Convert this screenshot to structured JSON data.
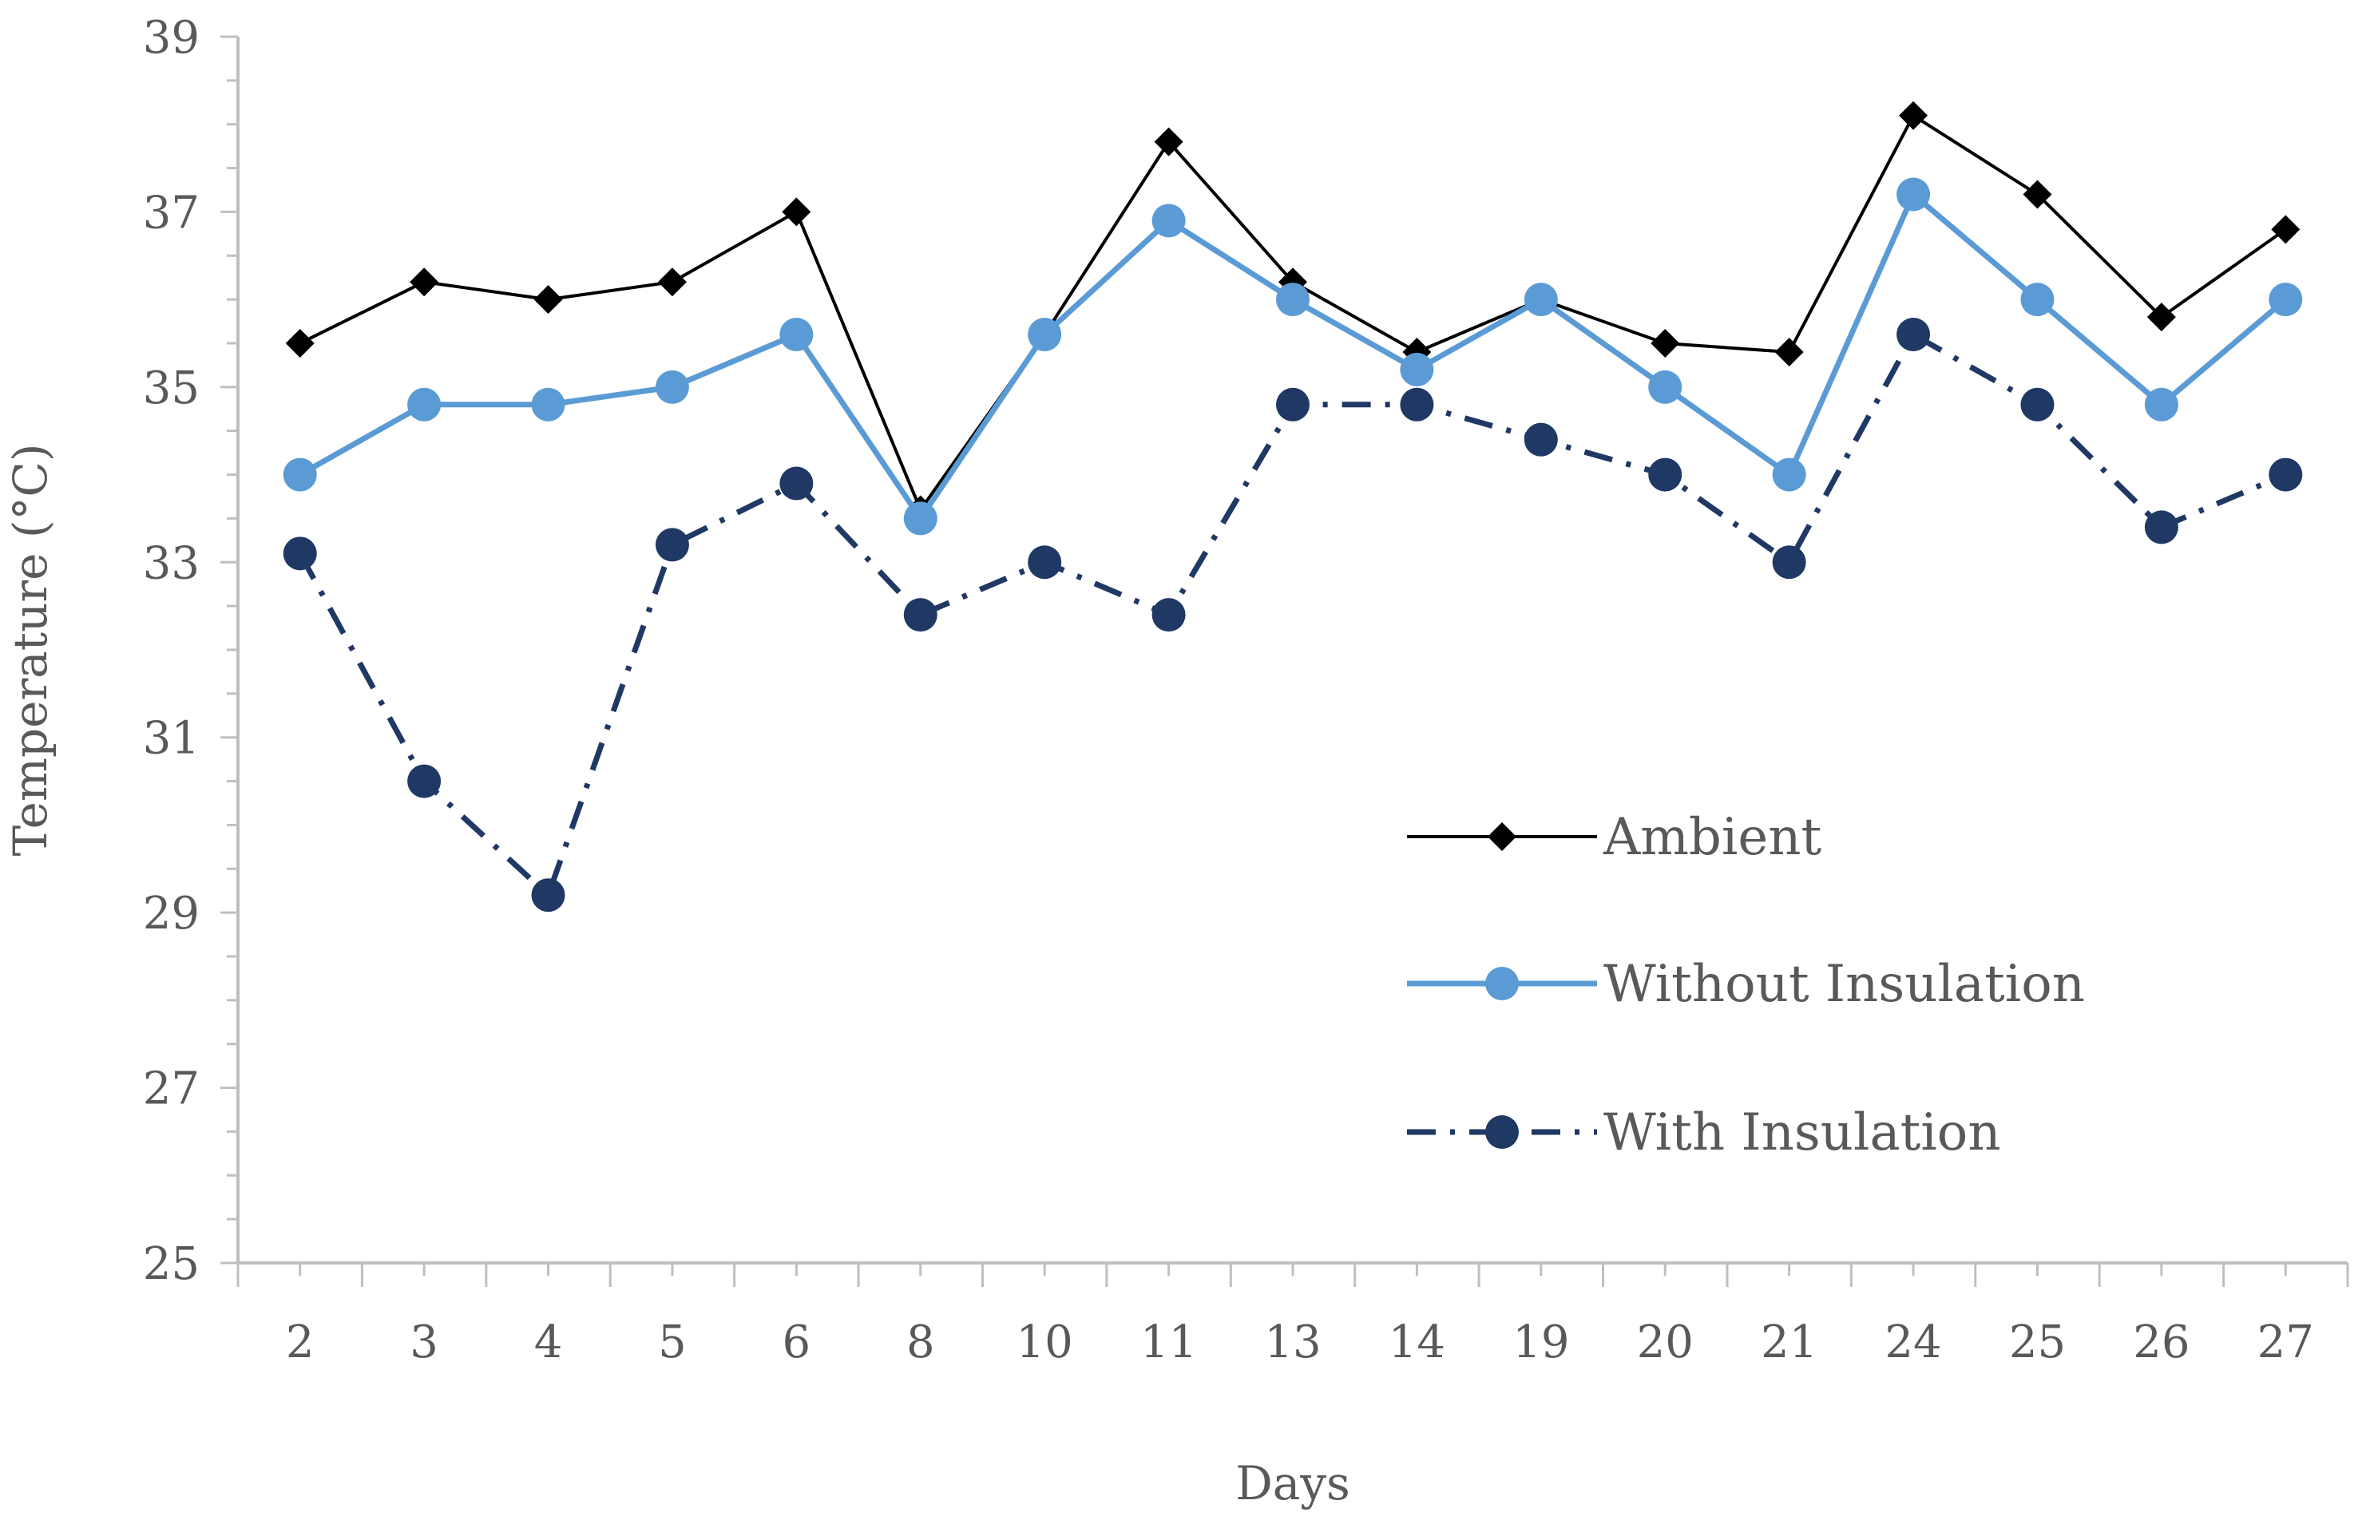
{
  "chart_data": {
    "type": "line",
    "title": "",
    "xlabel": "Days",
    "ylabel": "Temperature (°C)",
    "categories": [
      "2",
      "3",
      "4",
      "5",
      "6",
      "8",
      "10",
      "11",
      "13",
      "14",
      "19",
      "20",
      "21",
      "24",
      "25",
      "26",
      "27"
    ],
    "ylim": [
      25,
      39
    ],
    "yticks": [
      "25",
      "27",
      "29",
      "31",
      "33",
      "35",
      "37",
      "39"
    ],
    "grid": false,
    "legend_position": "right",
    "series": [
      {
        "name": "Ambient",
        "color": "#000000",
        "marker": "diamond",
        "line": "solid",
        "values": [
          35.5,
          36.2,
          36.0,
          36.2,
          37.0,
          33.6,
          35.6,
          37.8,
          36.2,
          35.4,
          36.0,
          35.5,
          35.4,
          38.1,
          37.2,
          35.8,
          36.8
        ]
      },
      {
        "name": "Without Insulation",
        "color": "#5B9BD5",
        "marker": "circle",
        "line": "solid",
        "values": [
          34.0,
          34.8,
          34.8,
          35.0,
          35.6,
          33.5,
          35.6,
          36.9,
          36.0,
          35.2,
          36.0,
          35.0,
          34.0,
          37.2,
          36.0,
          34.8,
          36.0
        ]
      },
      {
        "name": "With Insulation",
        "color": "#203864",
        "marker": "circle",
        "line": "dashdot",
        "values": [
          33.1,
          30.5,
          29.2,
          33.2,
          33.9,
          32.4,
          33.0,
          32.4,
          34.8,
          34.8,
          34.4,
          34.0,
          33.0,
          35.6,
          34.8,
          33.4,
          34.0
        ]
      }
    ]
  }
}
